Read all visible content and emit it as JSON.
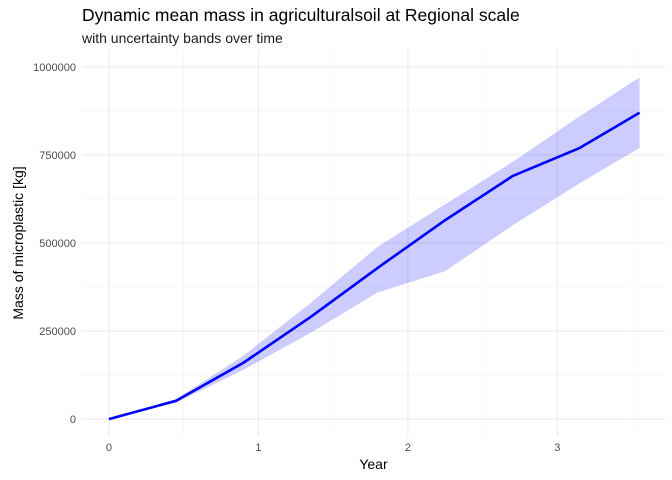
{
  "chart_data": {
    "type": "line",
    "title": "Dynamic mean mass in agriculturalsoil at Regional scale",
    "subtitle": "with uncertainty bands over time",
    "xlabel": "Year",
    "ylabel": "Mass of microplastic [kg]",
    "xlim": [
      -0.18,
      3.72
    ],
    "ylim": [
      -48000,
      1048000
    ],
    "x_ticks": [
      0,
      1,
      2,
      3
    ],
    "y_ticks": [
      0,
      250000,
      500000,
      750000,
      1000000
    ],
    "y_tick_labels": [
      "0",
      "250000",
      "500000",
      "750000",
      "1000000"
    ],
    "grid": true,
    "legend": "none",
    "colors": {
      "line": "#0000ff",
      "band": "#0000ff",
      "band_opacity": 0.2
    },
    "x": [
      0,
      0.45,
      0.9,
      1.35,
      1.8,
      2.25,
      2.7,
      3.15,
      3.55
    ],
    "series": [
      {
        "values": [
          0,
          52000,
          160000,
          290000,
          430000,
          565000,
          690000,
          770000,
          870000
        ]
      }
    ],
    "lower": [
      0,
      47000,
      140000,
      245000,
      360000,
      420000,
      550000,
      670000,
      770000
    ],
    "upper": [
      0,
      57000,
      180000,
      330000,
      490000,
      610000,
      730000,
      860000,
      970000
    ]
  }
}
